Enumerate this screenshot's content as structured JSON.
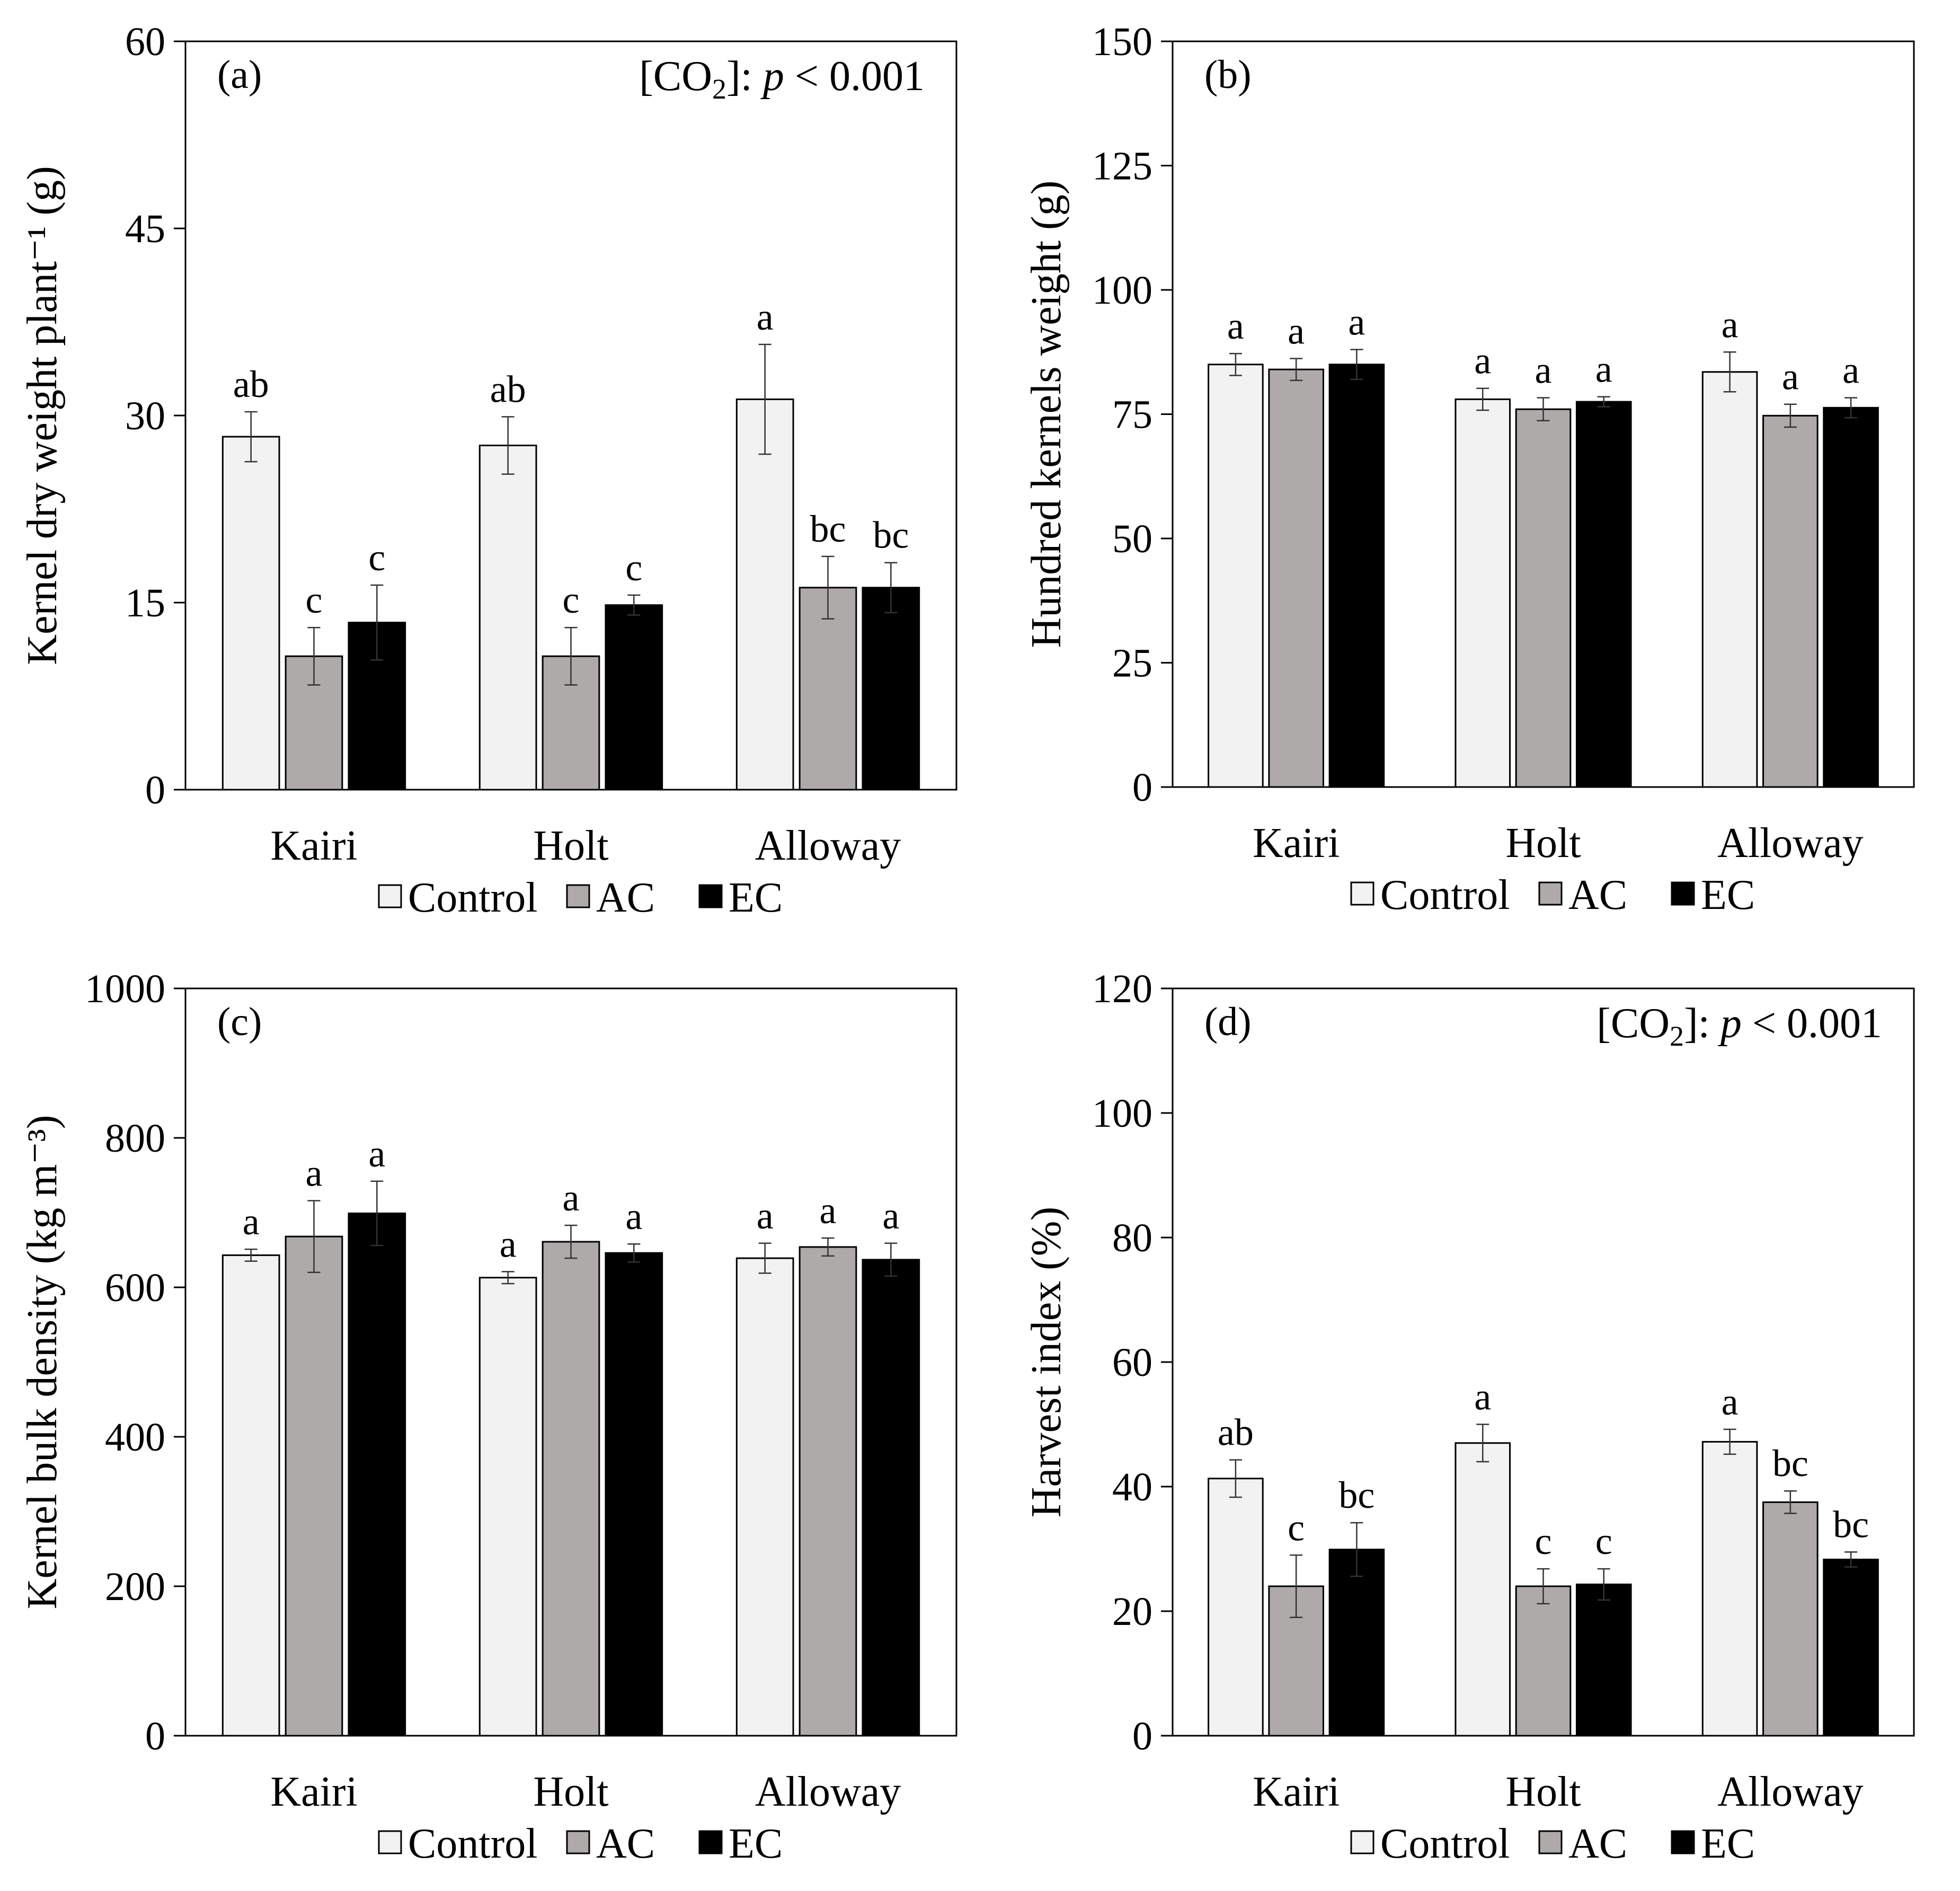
{
  "colors": {
    "Control": "#f2f2f2",
    "AC": "#aeaaaa",
    "EC": "#000000"
  },
  "chart_data": [
    {
      "type": "bar",
      "panel_label": "(a)",
      "ylabel": "Kernel dry weight plant⁻¹ (g)",
      "ylim": [
        0,
        60
      ],
      "yticks": [
        0,
        15,
        30,
        45,
        60
      ],
      "categories": [
        "Kairi",
        "Holt",
        "Alloway"
      ],
      "annotation": {
        "prefix": "[CO",
        "sub": "2",
        "mid": "]: ",
        "italic": "p",
        "suffix": " < 0.001"
      },
      "series": [
        {
          "name": "Control",
          "values": [
            28.3,
            27.6,
            31.3
          ],
          "errors": [
            2.0,
            2.3,
            4.4
          ],
          "letters": [
            "ab",
            "ab",
            "a"
          ]
        },
        {
          "name": "AC",
          "values": [
            10.7,
            10.7,
            16.2
          ],
          "errors": [
            2.3,
            2.3,
            2.5
          ],
          "letters": [
            "c",
            "c",
            "bc"
          ]
        },
        {
          "name": "EC",
          "values": [
            13.4,
            14.8,
            16.2
          ],
          "errors": [
            3.0,
            0.8,
            2.0
          ],
          "letters": [
            "c",
            "c",
            "bc"
          ]
        }
      ],
      "legend": [
        "Control",
        "AC",
        "EC"
      ]
    },
    {
      "type": "bar",
      "panel_label": "(b)",
      "ylabel": "Hundred kernels weight (g)",
      "ylim": [
        0,
        150
      ],
      "yticks": [
        0,
        25,
        50,
        75,
        100,
        125,
        150
      ],
      "categories": [
        "Kairi",
        "Holt",
        "Alloway"
      ],
      "annotation": null,
      "series": [
        {
          "name": "Control",
          "values": [
            85.0,
            78.0,
            83.5
          ],
          "errors": [
            2.2,
            2.2,
            4.0
          ],
          "letters": [
            "a",
            "a",
            "a"
          ]
        },
        {
          "name": "AC",
          "values": [
            84.0,
            76.0,
            74.7
          ],
          "errors": [
            2.2,
            2.3,
            2.3
          ],
          "letters": [
            "a",
            "a",
            "a"
          ]
        },
        {
          "name": "EC",
          "values": [
            85.0,
            77.5,
            76.3
          ],
          "errors": [
            3.0,
            1.0,
            2.0
          ],
          "letters": [
            "a",
            "a",
            "a"
          ]
        }
      ],
      "legend": [
        "Control",
        "AC",
        "EC"
      ]
    },
    {
      "type": "bar",
      "panel_label": "(c)",
      "ylabel": "Kernel bulk density (kg m⁻³)",
      "ylim": [
        0,
        1000
      ],
      "yticks": [
        0,
        200,
        400,
        600,
        800,
        1000
      ],
      "categories": [
        "Kairi",
        "Holt",
        "Alloway"
      ],
      "annotation": null,
      "series": [
        {
          "name": "Control",
          "values": [
            643,
            613,
            639
          ],
          "errors": [
            8,
            8,
            20
          ],
          "letters": [
            "a",
            "a",
            "a"
          ]
        },
        {
          "name": "AC",
          "values": [
            668,
            661,
            654
          ],
          "errors": [
            48,
            22,
            12
          ],
          "letters": [
            "a",
            "a",
            "a"
          ]
        },
        {
          "name": "EC",
          "values": [
            699,
            646,
            637
          ],
          "errors": [
            43,
            12,
            22
          ],
          "letters": [
            "a",
            "a",
            "a"
          ]
        }
      ],
      "legend": [
        "Control",
        "AC",
        "EC"
      ]
    },
    {
      "type": "bar",
      "panel_label": "(d)",
      "ylabel": "Harvest index (%)",
      "ylim": [
        0,
        120
      ],
      "yticks": [
        0,
        20,
        40,
        60,
        80,
        100,
        120
      ],
      "categories": [
        "Kairi",
        "Holt",
        "Alloway"
      ],
      "annotation": {
        "prefix": "[CO",
        "sub": "2",
        "mid": "]: ",
        "italic": "p",
        "suffix": " < 0.001"
      },
      "series": [
        {
          "name": "Control",
          "values": [
            41.3,
            47.0,
            47.2
          ],
          "errors": [
            3.0,
            3.0,
            2.0
          ],
          "letters": [
            "ab",
            "a",
            "a"
          ]
        },
        {
          "name": "AC",
          "values": [
            24.0,
            24.0,
            37.5
          ],
          "errors": [
            5.0,
            2.8,
            1.8
          ],
          "letters": [
            "c",
            "c",
            "bc"
          ]
        },
        {
          "name": "EC",
          "values": [
            29.9,
            24.3,
            28.3
          ],
          "errors": [
            4.3,
            2.5,
            1.2
          ],
          "letters": [
            "bc",
            "c",
            "bc"
          ]
        }
      ],
      "legend": [
        "Control",
        "AC",
        "EC"
      ]
    }
  ]
}
